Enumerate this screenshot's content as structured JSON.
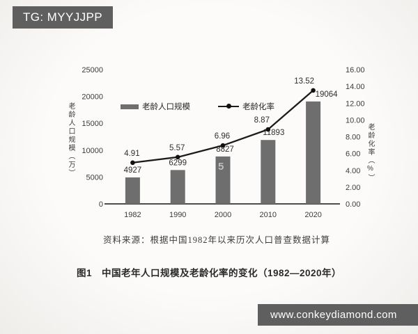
{
  "badges": {
    "top_left": "TG: MYYJJPP",
    "bottom_right": "www.conkeydiamond.com"
  },
  "watermark_glyph": "5",
  "chart_data": {
    "type": "bar",
    "subtype": "bar+line combo, dual axis",
    "categories": [
      "1982",
      "1990",
      "2000",
      "2010",
      "2020"
    ],
    "series": [
      {
        "name": "老龄人口规模",
        "type": "bar",
        "axis": "left",
        "color": "#6e6e6e",
        "values": [
          4927,
          6299,
          8827,
          11893,
          19064
        ]
      },
      {
        "name": "老龄化率",
        "type": "line",
        "axis": "right",
        "color": "#1b1b1b",
        "values": [
          4.91,
          5.57,
          6.96,
          8.87,
          13.52
        ]
      }
    ],
    "left_axis": {
      "label": "老龄人口规模（万）",
      "min": 0,
      "max": 25000,
      "step": 5000,
      "ticks": [
        "0",
        "5000",
        "10000",
        "15000",
        "20000",
        "25000"
      ]
    },
    "right_axis": {
      "label": "老龄化率（%）",
      "min": 0,
      "max": 16,
      "step": 2,
      "ticks": [
        "0.00",
        "2.00",
        "4.00",
        "6.00",
        "8.00",
        "10.00",
        "12.00",
        "14.00",
        "16.00"
      ]
    },
    "legend_position": "upper-left inside plot",
    "grid": "off",
    "source_note": "资料来源：根据中国1982年以来历次人口普查数据计算",
    "caption": "图1　中国老年人口规模及老龄化率的变化（1982—2020年）"
  }
}
